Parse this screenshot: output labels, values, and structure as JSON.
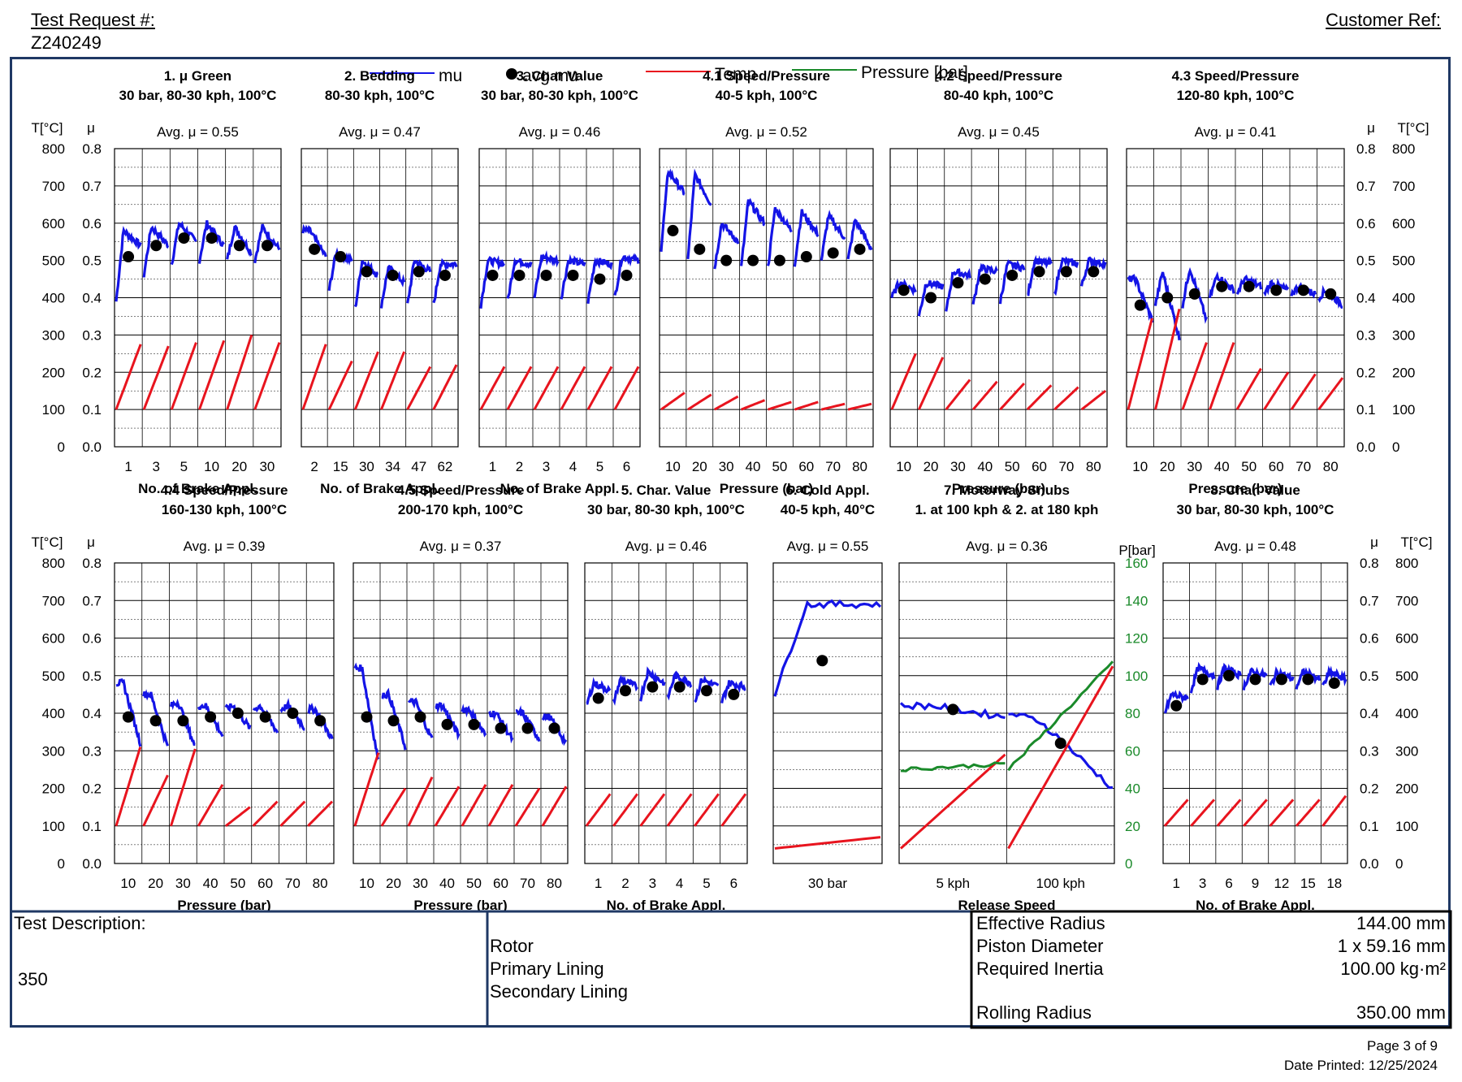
{
  "header": {
    "test_request_label": "Test Request #:",
    "test_request_value": "Z240249",
    "customer_ref_label": "Customer Ref:"
  },
  "legend": {
    "mu": "mu",
    "avg_mu": "avg mu",
    "temp": "Temp",
    "pressure": "Pressure [bar]"
  },
  "colors": {
    "mu": "#1414e6",
    "avg": "#000000",
    "temp": "#e8141e",
    "pressure": "#1a8a2a",
    "frame": "#1f3864"
  },
  "axis_labels": {
    "temp": "T[°C]",
    "mu": "μ",
    "pressure": "P[bar]"
  },
  "left_temp_ticks": [
    "800",
    "700",
    "600",
    "500",
    "400",
    "300",
    "200",
    "100",
    "0"
  ],
  "right_temp_ticks": [
    "800",
    "700",
    "600",
    "500",
    "400",
    "300",
    "200",
    "100",
    "0"
  ],
  "mu_ticks": [
    "0.8",
    "0.7",
    "0.6",
    "0.5",
    "0.4",
    "0.3",
    "0.2",
    "0.1",
    "0.0"
  ],
  "pressure_ticks": [
    "160",
    "140",
    "120",
    "100",
    "80",
    "60",
    "40",
    "20",
    "0"
  ],
  "chart_data": [
    {
      "type": "line",
      "title": "1. μ Green",
      "subtitle": "30 bar, 80-30 kph, 100°C",
      "avg_label": "Avg. μ = 0.55",
      "xlabel": "No. of Brake Appl.",
      "ticks": [
        "1",
        "3",
        "5",
        "10",
        "20",
        "30"
      ],
      "segments": 6,
      "avg_mu": [
        0.51,
        0.54,
        0.56,
        0.56,
        0.54,
        0.54
      ],
      "mu_start": [
        0.39,
        0.46,
        0.49,
        0.5,
        0.5,
        0.5
      ],
      "mu_peak": [
        0.58,
        0.59,
        0.6,
        0.6,
        0.59,
        0.59
      ],
      "mu_end": [
        0.54,
        0.54,
        0.55,
        0.54,
        0.52,
        0.53
      ],
      "temp_start": [
        100,
        100,
        100,
        100,
        100,
        100
      ],
      "temp_end": [
        275,
        270,
        280,
        285,
        300,
        280
      ],
      "ylim_mu": [
        0,
        0.8
      ],
      "ylim_temp": [
        0,
        800
      ]
    },
    {
      "type": "line",
      "title": "2. Bedding",
      "subtitle": "80-30 kph, 100°C",
      "avg_label": "Avg. μ = 0.47",
      "xlabel": "No. of Brake Appl.",
      "ticks": [
        "2",
        "15",
        "30",
        "34",
        "47",
        "62"
      ],
      "segments": 6,
      "avg_mu": [
        0.53,
        0.51,
        0.47,
        0.46,
        0.47,
        0.46
      ],
      "mu_start": [
        0.58,
        0.42,
        0.37,
        0.38,
        0.38,
        0.38
      ],
      "mu_peak": [
        0.58,
        0.52,
        0.5,
        0.48,
        0.5,
        0.49
      ],
      "mu_end": [
        0.51,
        0.5,
        0.46,
        0.44,
        0.47,
        0.49
      ],
      "temp_start": [
        100,
        100,
        100,
        100,
        100,
        100
      ],
      "temp_end": [
        275,
        230,
        255,
        255,
        215,
        220
      ],
      "ylim_mu": [
        0,
        0.8
      ],
      "ylim_temp": [
        0,
        800
      ]
    },
    {
      "type": "line",
      "title": "3. Char Value",
      "subtitle": "30 bar, 80-30 kph, 100°C",
      "avg_label": "Avg. μ = 0.46",
      "xlabel": "No. of Brake Appl.",
      "ticks": [
        "1",
        "2",
        "3",
        "4",
        "5",
        "6"
      ],
      "segments": 6,
      "avg_mu": [
        0.46,
        0.46,
        0.46,
        0.46,
        0.45,
        0.46
      ],
      "mu_start": [
        0.38,
        0.39,
        0.4,
        0.4,
        0.39,
        0.4
      ],
      "mu_peak": [
        0.5,
        0.5,
        0.51,
        0.5,
        0.5,
        0.51
      ],
      "mu_end": [
        0.49,
        0.49,
        0.5,
        0.49,
        0.49,
        0.5
      ],
      "temp_start": [
        100,
        100,
        100,
        100,
        100,
        100
      ],
      "temp_end": [
        215,
        215,
        215,
        215,
        215,
        215
      ],
      "ylim_mu": [
        0,
        0.8
      ],
      "ylim_temp": [
        0,
        800
      ]
    },
    {
      "type": "line",
      "title": "4.1 Speed/Pressure",
      "subtitle": "40-5 kph, 100°C",
      "avg_label": "Avg. μ = 0.52",
      "xlabel": "Pressure (bar)",
      "ticks": [
        "10",
        "20",
        "30",
        "40",
        "50",
        "60",
        "70",
        "80"
      ],
      "segments": 8,
      "avg_mu": [
        0.58,
        0.53,
        0.5,
        0.5,
        0.5,
        0.51,
        0.52,
        0.53
      ],
      "mu_start": [
        0.53,
        0.5,
        0.48,
        0.48,
        0.48,
        0.49,
        0.5,
        0.5
      ],
      "mu_peak": [
        0.74,
        0.73,
        0.6,
        0.66,
        0.64,
        0.63,
        0.62,
        0.61
      ],
      "mu_end": [
        0.68,
        0.65,
        0.55,
        0.6,
        0.58,
        0.57,
        0.56,
        0.53
      ],
      "temp_start": [
        100,
        100,
        100,
        100,
        100,
        100,
        100,
        100
      ],
      "temp_end": [
        145,
        140,
        135,
        125,
        120,
        120,
        115,
        115
      ],
      "ylim_mu": [
        0,
        0.8
      ],
      "ylim_temp": [
        0,
        800
      ]
    },
    {
      "type": "line",
      "title": "4.2 Speed/Pressure",
      "subtitle": "80-40 kph, 100°C",
      "avg_label": "Avg. μ = 0.45",
      "xlabel": "Pressure (bar)",
      "ticks": [
        "10",
        "20",
        "30",
        "40",
        "50",
        "60",
        "70",
        "80"
      ],
      "segments": 8,
      "avg_mu": [
        0.42,
        0.4,
        0.44,
        0.45,
        0.46,
        0.47,
        0.47,
        0.47
      ],
      "mu_start": [
        0.4,
        0.35,
        0.36,
        0.38,
        0.39,
        0.4,
        0.41,
        0.43
      ],
      "mu_peak": [
        0.44,
        0.44,
        0.47,
        0.48,
        0.49,
        0.5,
        0.5,
        0.5
      ],
      "mu_end": [
        0.42,
        0.43,
        0.46,
        0.47,
        0.48,
        0.49,
        0.49,
        0.49
      ],
      "temp_start": [
        100,
        100,
        100,
        100,
        100,
        100,
        100,
        100
      ],
      "temp_end": [
        250,
        240,
        180,
        175,
        170,
        165,
        160,
        150
      ],
      "ylim_mu": [
        0,
        0.8
      ],
      "ylim_temp": [
        0,
        800
      ]
    },
    {
      "type": "line",
      "title": "4.3 Speed/Pressure",
      "subtitle": "120-80 kph, 100°C",
      "avg_label": "Avg. μ = 0.41",
      "xlabel": "Pressure (bar)",
      "ticks": [
        "10",
        "20",
        "30",
        "40",
        "50",
        "60",
        "70",
        "80"
      ],
      "segments": 8,
      "avg_mu": [
        0.38,
        0.4,
        0.41,
        0.43,
        0.43,
        0.42,
        0.42,
        0.41
      ],
      "mu_start": [
        0.45,
        0.38,
        0.38,
        0.4,
        0.41,
        0.41,
        0.41,
        0.4
      ],
      "mu_peak": [
        0.45,
        0.47,
        0.48,
        0.46,
        0.45,
        0.44,
        0.43,
        0.42
      ],
      "mu_end": [
        0.34,
        0.29,
        0.34,
        0.42,
        0.43,
        0.42,
        0.41,
        0.38
      ],
      "temp_start": [
        100,
        100,
        100,
        100,
        100,
        100,
        100,
        100
      ],
      "temp_end": [
        345,
        370,
        280,
        280,
        210,
        200,
        195,
        185
      ],
      "ylim_mu": [
        0,
        0.8
      ],
      "ylim_temp": [
        0,
        800
      ]
    },
    {
      "type": "line",
      "title": "4.4 Speed/Pressure",
      "subtitle": "160-130 kph, 100°C",
      "avg_label": "Avg. μ = 0.39",
      "xlabel": "Pressure (bar)",
      "ticks": [
        "10",
        "20",
        "30",
        "40",
        "50",
        "60",
        "70",
        "80"
      ],
      "segments": 8,
      "avg_mu": [
        0.39,
        0.38,
        0.38,
        0.39,
        0.4,
        0.39,
        0.4,
        0.38
      ],
      "mu_start": [
        0.48,
        0.45,
        0.42,
        0.42,
        0.41,
        0.41,
        0.41,
        0.41
      ],
      "mu_peak": [
        0.48,
        0.45,
        0.43,
        0.42,
        0.42,
        0.42,
        0.42,
        0.41
      ],
      "mu_end": [
        0.32,
        0.31,
        0.31,
        0.34,
        0.36,
        0.35,
        0.36,
        0.33
      ],
      "temp_start": [
        100,
        100,
        100,
        100,
        100,
        100,
        100,
        100
      ],
      "temp_end": [
        310,
        235,
        305,
        210,
        150,
        165,
        165,
        165
      ],
      "ylim_mu": [
        0,
        0.8
      ],
      "ylim_temp": [
        0,
        800
      ]
    },
    {
      "type": "line",
      "title": "4.5 Speed/Pressure",
      "subtitle": "200-170 kph, 100°C",
      "avg_label": "Avg. μ = 0.37",
      "xlabel": "Pressure (bar)",
      "ticks": [
        "10",
        "20",
        "30",
        "40",
        "50",
        "60",
        "70",
        "80"
      ],
      "segments": 8,
      "avg_mu": [
        0.39,
        0.38,
        0.39,
        0.37,
        0.37,
        0.36,
        0.36,
        0.36
      ],
      "mu_start": [
        0.52,
        0.45,
        0.43,
        0.42,
        0.41,
        0.4,
        0.4,
        0.39
      ],
      "mu_peak": [
        0.52,
        0.45,
        0.43,
        0.42,
        0.41,
        0.4,
        0.4,
        0.39
      ],
      "mu_end": [
        0.27,
        0.31,
        0.33,
        0.34,
        0.34,
        0.33,
        0.33,
        0.32
      ],
      "temp_start": [
        100,
        100,
        100,
        100,
        100,
        100,
        100,
        100
      ],
      "temp_end": [
        295,
        200,
        230,
        205,
        210,
        210,
        200,
        205
      ],
      "ylim_mu": [
        0,
        0.8
      ],
      "ylim_temp": [
        0,
        800
      ]
    },
    {
      "type": "line",
      "title": "5. Char. Value",
      "subtitle": "30 bar, 80-30 kph, 100°C",
      "avg_label": "Avg. μ = 0.46",
      "xlabel": "No. of Brake Appl.",
      "ticks": [
        "1",
        "2",
        "3",
        "4",
        "5",
        "6"
      ],
      "segments": 6,
      "avg_mu": [
        0.44,
        0.46,
        0.47,
        0.47,
        0.46,
        0.45
      ],
      "mu_start": [
        0.42,
        0.43,
        0.44,
        0.44,
        0.43,
        0.43
      ],
      "mu_peak": [
        0.48,
        0.49,
        0.51,
        0.5,
        0.49,
        0.48
      ],
      "mu_end": [
        0.46,
        0.47,
        0.48,
        0.48,
        0.47,
        0.47
      ],
      "temp_start": [
        100,
        100,
        100,
        100,
        100,
        100
      ],
      "temp_end": [
        185,
        185,
        185,
        185,
        185,
        185
      ],
      "ylim_mu": [
        0,
        0.8
      ],
      "ylim_temp": [
        0,
        800
      ]
    },
    {
      "type": "line",
      "title": "6. Cold Appl.",
      "subtitle": "40-5 kph, 40°C",
      "avg_label": "Avg. μ = 0.55",
      "xlabel": "",
      "ticks": [
        "30 bar"
      ],
      "segments": 1,
      "avg_mu": [
        0.54
      ],
      "mu_start": [
        0.45
      ],
      "mu_peak": [
        0.69
      ],
      "mu_end": [
        0.69
      ],
      "temp_start": [
        40
      ],
      "temp_end": [
        70
      ],
      "ylim_mu": [
        0,
        0.8
      ],
      "ylim_temp": [
        0,
        800
      ]
    },
    {
      "type": "line",
      "title": "7. Motorway Snubs",
      "subtitle": "1. at 100 kph & 2. at 180 kph",
      "avg_label": "Avg. μ = 0.36",
      "xlabel": "Release Speed",
      "ticks": [
        "5 kph",
        "100 kph"
      ],
      "segments": 2,
      "avg_mu": [
        0.41,
        0.32
      ],
      "mu_start": [
        0.42,
        0.4
      ],
      "mu_peak": [
        0.42,
        0.38
      ],
      "mu_end": [
        0.39,
        0.2
      ],
      "temp_start": [
        40,
        40
      ],
      "temp_end": [
        290,
        525
      ],
      "pressure_start": [
        50,
        50
      ],
      "pressure_end": [
        53,
        107
      ],
      "ylim_mu": [
        0,
        0.8
      ],
      "ylim_temp": [
        0,
        800
      ],
      "ylim_pressure": [
        0,
        160
      ]
    },
    {
      "type": "line",
      "title": "8. Char. Value",
      "subtitle": "30 bar, 80-30 kph, 100°C",
      "avg_label": "Avg. μ = 0.48",
      "xlabel": "No. of Brake Appl.",
      "ticks": [
        "1",
        "3",
        "6",
        "9",
        "12",
        "15",
        "18"
      ],
      "segments": 7,
      "avg_mu": [
        0.42,
        0.49,
        0.5,
        0.49,
        0.49,
        0.49,
        0.48
      ],
      "mu_start": [
        0.4,
        0.46,
        0.47,
        0.47,
        0.47,
        0.47,
        0.47
      ],
      "mu_peak": [
        0.45,
        0.52,
        0.52,
        0.51,
        0.51,
        0.51,
        0.51
      ],
      "mu_end": [
        0.44,
        0.5,
        0.5,
        0.5,
        0.49,
        0.49,
        0.49
      ],
      "temp_start": [
        100,
        100,
        100,
        100,
        100,
        100,
        100
      ],
      "temp_end": [
        170,
        170,
        170,
        170,
        170,
        170,
        180
      ],
      "ylim_mu": [
        0,
        0.8
      ],
      "ylim_temp": [
        0,
        800
      ]
    }
  ],
  "footer": {
    "test_description_label": "Test Description:",
    "test_description_value": "350",
    "components": [
      "Rotor",
      "Primary Lining",
      "Secondary Lining"
    ],
    "specs": [
      {
        "label": "Effective Radius",
        "value": "144.00 mm"
      },
      {
        "label": "Piston Diameter",
        "value": "1 x 59.16 mm"
      },
      {
        "label": "Required Inertia",
        "value": "100.00 kg·m²"
      },
      {
        "label": "Rolling Radius",
        "value": "350.00 mm"
      }
    ],
    "page": "Page 3 of 9",
    "date_printed": "Date Printed: 12/25/2024"
  }
}
